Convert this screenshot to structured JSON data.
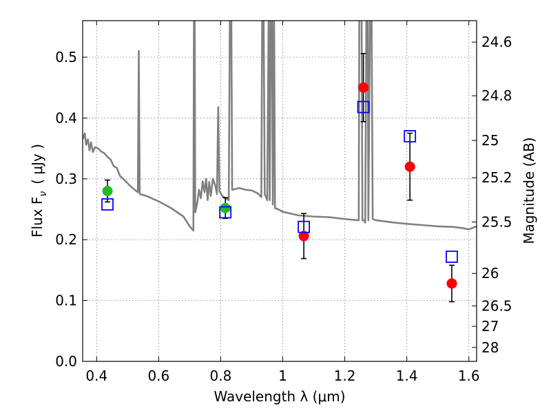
{
  "chart_data": {
    "type": "scatter",
    "xlabel": "Wavelength  λ (μm)",
    "ylabel_left": "Flux  F",
    "ylabel_left_sub": "ν",
    "ylabel_left_units": "( μJy )",
    "ylabel_right": "Magnitude (AB)",
    "xlim": [
      0.355,
      1.625
    ],
    "ylim": [
      0.0,
      0.56
    ],
    "grid": true,
    "x_ticks": [
      {
        "value": 0.4,
        "label": "0.4"
      },
      {
        "value": 0.6,
        "label": "0.6"
      },
      {
        "value": 0.8,
        "label": "0.8"
      },
      {
        "value": 1.0,
        "label": "1"
      },
      {
        "value": 1.2,
        "label": "1.2"
      },
      {
        "value": 1.4,
        "label": "1.4"
      },
      {
        "value": 1.6,
        "label": "1.6"
      }
    ],
    "y_ticks": [
      {
        "value": 0.0,
        "label": "0.0"
      },
      {
        "value": 0.1,
        "label": "0.1"
      },
      {
        "value": 0.2,
        "label": "0.2"
      },
      {
        "value": 0.3,
        "label": "0.3"
      },
      {
        "value": 0.4,
        "label": "0.4"
      },
      {
        "value": 0.5,
        "label": "0.5"
      }
    ],
    "right_ticks": [
      {
        "value": 24.6,
        "label": "24.6"
      },
      {
        "value": 24.8,
        "label": "24.8"
      },
      {
        "value": 25.0,
        "label": "25"
      },
      {
        "value": 25.2,
        "label": "25.2"
      },
      {
        "value": 25.5,
        "label": "25.5"
      },
      {
        "value": 26.0,
        "label": "26"
      },
      {
        "value": 26.5,
        "label": "26.5"
      },
      {
        "value": 27.0,
        "label": "27"
      },
      {
        "value": 28.0,
        "label": "28"
      }
    ],
    "model_spectrum": {
      "color": "#808080",
      "points": [
        [
          0.355,
          0.365
        ],
        [
          0.362,
          0.375
        ],
        [
          0.366,
          0.356
        ],
        [
          0.372,
          0.365
        ],
        [
          0.377,
          0.347
        ],
        [
          0.382,
          0.36
        ],
        [
          0.388,
          0.344
        ],
        [
          0.395,
          0.352
        ],
        [
          0.405,
          0.35
        ],
        [
          0.415,
          0.345
        ],
        [
          0.425,
          0.342
        ],
        [
          0.435,
          0.336
        ],
        [
          0.445,
          0.332
        ],
        [
          0.455,
          0.321
        ],
        [
          0.465,
          0.318
        ],
        [
          0.475,
          0.305
        ],
        [
          0.49,
          0.298
        ],
        [
          0.505,
          0.29
        ],
        [
          0.52,
          0.283
        ],
        [
          0.533,
          0.278
        ],
        [
          0.536,
          0.51
        ],
        [
          0.539,
          0.275
        ],
        [
          0.56,
          0.272
        ],
        [
          0.6,
          0.263
        ],
        [
          0.64,
          0.252
        ],
        [
          0.68,
          0.238
        ],
        [
          0.7,
          0.222
        ],
        [
          0.712,
          0.215
        ],
        [
          0.714,
          0.6
        ],
        [
          0.716,
          0.6
        ],
        [
          0.718,
          0.245
        ],
        [
          0.725,
          0.262
        ],
        [
          0.73,
          0.282
        ],
        [
          0.736,
          0.268
        ],
        [
          0.742,
          0.296
        ],
        [
          0.748,
          0.278
        ],
        [
          0.753,
          0.3
        ],
        [
          0.758,
          0.265
        ],
        [
          0.763,
          0.295
        ],
        [
          0.768,
          0.272
        ],
        [
          0.775,
          0.3
        ],
        [
          0.782,
          0.29
        ],
        [
          0.788,
          0.275
        ],
        [
          0.792,
          0.418
        ],
        [
          0.796,
          0.28
        ],
        [
          0.805,
          0.272
        ],
        [
          0.815,
          0.268
        ],
        [
          0.826,
          0.265
        ],
        [
          0.83,
          0.6
        ],
        [
          0.834,
          0.6
        ],
        [
          0.837,
          0.282
        ],
        [
          0.86,
          0.285
        ],
        [
          0.88,
          0.282
        ],
        [
          0.9,
          0.281
        ],
        [
          0.92,
          0.276
        ],
        [
          0.931,
          0.27
        ],
        [
          0.934,
          0.6
        ],
        [
          0.938,
          0.6
        ],
        [
          0.942,
          0.275
        ],
        [
          0.95,
          0.265
        ],
        [
          0.955,
          0.6
        ],
        [
          0.958,
          0.265
        ],
        [
          0.962,
          0.6
        ],
        [
          0.965,
          0.6
        ],
        [
          0.968,
          0.258
        ],
        [
          0.972,
          0.6
        ],
        [
          0.975,
          0.252
        ],
        [
          0.985,
          0.25
        ],
        [
          1.0,
          0.246
        ],
        [
          1.05,
          0.24
        ],
        [
          1.1,
          0.238
        ],
        [
          1.15,
          0.237
        ],
        [
          1.2,
          0.234
        ],
        [
          1.24,
          0.232
        ],
        [
          1.245,
          0.232
        ],
        [
          1.247,
          0.6
        ],
        [
          1.251,
          0.6
        ],
        [
          1.254,
          0.6
        ],
        [
          1.257,
          0.232
        ],
        [
          1.262,
          0.232
        ],
        [
          1.266,
          0.228
        ],
        [
          1.27,
          0.6
        ],
        [
          1.274,
          0.6
        ],
        [
          1.276,
          0.232
        ],
        [
          1.282,
          0.6
        ],
        [
          1.286,
          0.6
        ],
        [
          1.29,
          0.234
        ],
        [
          1.3,
          0.232
        ],
        [
          1.33,
          0.23
        ],
        [
          1.36,
          0.228
        ],
        [
          1.4,
          0.226
        ],
        [
          1.45,
          0.224
        ],
        [
          1.5,
          0.222
        ],
        [
          1.55,
          0.221
        ],
        [
          1.58,
          0.219
        ],
        [
          1.6,
          0.217
        ],
        [
          1.625,
          0.222
        ]
      ]
    },
    "series": [
      {
        "marker": "circle",
        "color": "#22bb22",
        "points": [
          {
            "x": 0.435,
            "y": 0.28,
            "err_lo": 0.018,
            "err_hi": 0.018
          },
          {
            "x": 0.815,
            "y": 0.252,
            "err_lo": 0.017,
            "err_hi": 0.017
          }
        ]
      },
      {
        "marker": "circle",
        "color": "#ff0000",
        "points": [
          {
            "x": 1.068,
            "y": 0.206,
            "err_lo": 0.037,
            "err_hi": 0.037
          },
          {
            "x": 1.26,
            "y": 0.45,
            "err_lo": 0.056,
            "err_hi": 0.056
          },
          {
            "x": 1.41,
            "y": 0.32,
            "err_lo": 0.055,
            "err_hi": 0.055
          },
          {
            "x": 1.545,
            "y": 0.128,
            "err_lo": 0.03,
            "err_hi": 0.03
          }
        ]
      },
      {
        "marker": "open-square",
        "color": "#0000ff",
        "points": [
          {
            "x": 0.435,
            "y": 0.258
          },
          {
            "x": 0.815,
            "y": 0.245
          },
          {
            "x": 1.068,
            "y": 0.221
          },
          {
            "x": 1.26,
            "y": 0.418
          },
          {
            "x": 1.41,
            "y": 0.37
          },
          {
            "x": 1.545,
            "y": 0.172
          }
        ]
      }
    ]
  }
}
